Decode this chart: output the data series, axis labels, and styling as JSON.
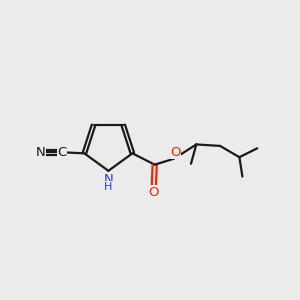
{
  "bg_color": "#ebebeb",
  "bond_color": "#1a1a1a",
  "N_color": "#3333ff",
  "O_color": "#ff2200",
  "CN_color": "#1a1a1a",
  "line_width": 1.6,
  "dbo": 0.006,
  "font_size": 9.5,
  "fig_width": 3.0,
  "fig_height": 3.0,
  "dpi": 100,
  "xlim": [
    0,
    1
  ],
  "ylim": [
    0,
    1
  ]
}
